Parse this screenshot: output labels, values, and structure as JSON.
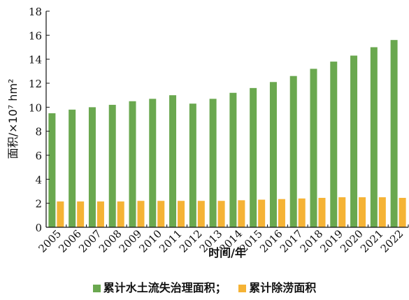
{
  "chart_data": {
    "type": "bar",
    "categories": [
      "2005",
      "2006",
      "2007",
      "2008",
      "2009",
      "2010",
      "2011",
      "2012",
      "2013",
      "2014",
      "2015",
      "2016",
      "2017",
      "2018",
      "2019",
      "2020",
      "2021",
      "2022"
    ],
    "series": [
      {
        "name": "累计水土流失治理面积；",
        "color": "#6aa84f",
        "values": [
          9.5,
          9.8,
          10.0,
          10.2,
          10.5,
          10.7,
          11.0,
          10.3,
          10.7,
          11.2,
          11.6,
          12.1,
          12.6,
          13.2,
          13.8,
          14.3,
          15.0,
          15.6
        ]
      },
      {
        "name": "累计除涝面积",
        "color": "#f5b335",
        "values": [
          2.15,
          2.15,
          2.15,
          2.15,
          2.2,
          2.2,
          2.2,
          2.2,
          2.2,
          2.25,
          2.3,
          2.35,
          2.4,
          2.45,
          2.5,
          2.5,
          2.5,
          2.45
        ]
      }
    ],
    "xlabel": "时间/年",
    "ylabel": "面积/×10⁷ hm²",
    "ylim": [
      0,
      18
    ],
    "yticks": [
      0,
      2,
      4,
      6,
      8,
      10,
      12,
      14,
      16,
      18
    ],
    "grid": false,
    "legend_position": "bottom"
  }
}
